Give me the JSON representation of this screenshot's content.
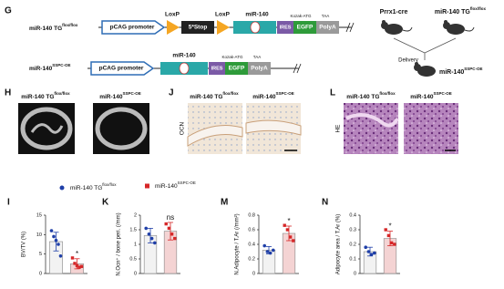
{
  "figure": {
    "G": {
      "label": "G",
      "row1_name": {
        "text": "miR-140 TG",
        "sup": "flox/flox"
      },
      "row1": {
        "promoter": "pCAG promoter",
        "loxp1": "LoxP",
        "stop": "5*Stop",
        "loxp2": "LoxP",
        "mir": "miR-140",
        "kozak": "Kozak-ATG",
        "taa": "TAA",
        "ires": "IRES",
        "egfp": "EGFP",
        "polya": "PolyA"
      },
      "row2_name": {
        "text": "miR-140",
        "sup": "SSPC-OE"
      },
      "row2": {
        "promoter": "pCAG promoter",
        "mir": "miR-140",
        "kozak": "Kozak-ATG",
        "taa": "TAA",
        "ires": "IRES",
        "egfp": "EGFP",
        "polya": "PolyA"
      },
      "cross": {
        "cre": "Prrx1-cre",
        "flox": {
          "text": "miR-140 TG",
          "sup": "flox/flox"
        },
        "delivery": "Delivery",
        "offspring": {
          "text": "miR-140",
          "sup": "SSPC-OE"
        }
      }
    },
    "H": {
      "label": "H",
      "left": {
        "text": "miR-140 TG",
        "sup": "flox/flox"
      },
      "right": {
        "text": "miR-140",
        "sup": "SSPC-OE"
      }
    },
    "J": {
      "label": "J",
      "left": {
        "text": "miR-140 TG",
        "sup": "flox/flox"
      },
      "right": {
        "text": "miR-140",
        "sup": "SSPC-OE"
      },
      "side": "OCN"
    },
    "L": {
      "label": "L",
      "left": {
        "text": "miR-140 TG",
        "sup": "flox/flox"
      },
      "right": {
        "text": "miR-140",
        "sup": "SSPC-OE"
      },
      "side": "HE"
    },
    "legend": [
      {
        "text": "miR-140 TG",
        "sup": "flox/flox",
        "color": "#1f3fa8"
      },
      {
        "text": "miR-140",
        "sup": "SSPC-OE",
        "color": "#d62728"
      }
    ]
  },
  "chart_data": [
    {
      "type": "bar",
      "label": "I",
      "ylabel": "BV/TV (%)",
      "ylim": [
        0,
        15
      ],
      "yticks": [
        0,
        5,
        10,
        15
      ],
      "values": [
        8.2,
        2.5
      ],
      "errors": [
        2.4,
        1.3
      ],
      "points": [
        [
          11,
          9.5,
          8.5,
          7.5,
          4.5
        ],
        [
          4,
          2.6,
          2,
          1.6,
          1.8
        ]
      ],
      "colors": [
        "#1f3fa8",
        "#d62728"
      ],
      "bar_colors": [
        "#f2f2f2",
        "#f4d3d3"
      ],
      "annotation": "*"
    },
    {
      "type": "bar",
      "label": "K",
      "ylabel": "N.Ocn⁺ / bone peri. (/mm)",
      "ylim": [
        0,
        2
      ],
      "yticks": [
        0,
        0.5,
        1,
        1.5,
        2
      ],
      "values": [
        1.3,
        1.45
      ],
      "errors": [
        0.25,
        0.3
      ],
      "points": [
        [
          1.55,
          1.35,
          1.2,
          1.05
        ],
        [
          1.7,
          1.55,
          1.35,
          1.2
        ]
      ],
      "colors": [
        "#1f3fa8",
        "#d62728"
      ],
      "bar_colors": [
        "#f2f2f2",
        "#f4d3d3"
      ],
      "annotation": "ns"
    },
    {
      "type": "bar",
      "label": "M",
      "ylabel": "N.Adipocyte / T.Ar (/mm²)",
      "ylim": [
        0,
        0.8
      ],
      "yticks": [
        0,
        0.2,
        0.4,
        0.6,
        0.8
      ],
      "values": [
        0.32,
        0.55
      ],
      "errors": [
        0.05,
        0.1
      ],
      "points": [
        [
          0.38,
          0.3,
          0.28,
          0.32
        ],
        [
          0.66,
          0.6,
          0.5,
          0.45
        ]
      ],
      "colors": [
        "#1f3fa8",
        "#d62728"
      ],
      "bar_colors": [
        "#f2f2f2",
        "#f4d3d3"
      ],
      "annotation": "*"
    },
    {
      "type": "bar",
      "label": "N",
      "ylabel": "Adipocyte area / T.Ar (%)",
      "ylim": [
        0,
        0.4
      ],
      "yticks": [
        0,
        0.1,
        0.2,
        0.3,
        0.4
      ],
      "values": [
        0.15,
        0.24
      ],
      "errors": [
        0.03,
        0.05
      ],
      "points": [
        [
          0.18,
          0.15,
          0.13,
          0.14
        ],
        [
          0.3,
          0.26,
          0.21,
          0.2
        ]
      ],
      "colors": [
        "#1f3fa8",
        "#d62728"
      ],
      "bar_colors": [
        "#f2f2f2",
        "#f4d3d3"
      ],
      "annotation": "*"
    }
  ]
}
